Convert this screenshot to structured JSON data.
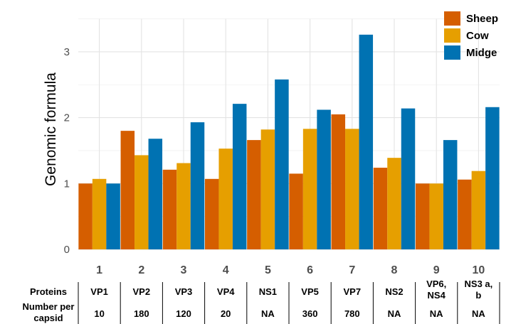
{
  "chart_data": {
    "type": "bar",
    "ylabel": "Genomic formula",
    "xlabel": "",
    "categories": [
      "1",
      "2",
      "3",
      "4",
      "5",
      "6",
      "7",
      "8",
      "9",
      "10"
    ],
    "ylim": [
      0,
      3.5
    ],
    "yticks": [
      0,
      1,
      2,
      3
    ],
    "grid": true,
    "legend_position": "top-right",
    "series": [
      {
        "name": "Sheep",
        "color": "#D55E00",
        "values": [
          1.0,
          1.8,
          1.21,
          1.07,
          1.66,
          1.15,
          2.05,
          1.24,
          1.0,
          1.06
        ]
      },
      {
        "name": "Cow",
        "color": "#E69F00",
        "values": [
          1.07,
          1.43,
          1.31,
          1.53,
          1.82,
          1.83,
          1.83,
          1.39,
          1.0,
          1.19
        ]
      },
      {
        "name": "Midge",
        "color": "#0072B2",
        "values": [
          1.0,
          1.68,
          1.93,
          2.21,
          2.58,
          2.12,
          3.26,
          2.14,
          1.66,
          2.16
        ]
      }
    ],
    "table": {
      "row_labels": [
        "Proteins",
        "Number per capsid"
      ],
      "proteins": [
        "VP1",
        "VP2",
        "VP3",
        "VP4",
        "NS1",
        "VP5",
        "VP7",
        "NS2",
        "VP6, NS4",
        "NS3 a, b"
      ],
      "number_per_capsid": [
        "10",
        "180",
        "120",
        "20",
        "NA",
        "360",
        "780",
        "NA",
        "NA",
        "NA"
      ]
    }
  }
}
